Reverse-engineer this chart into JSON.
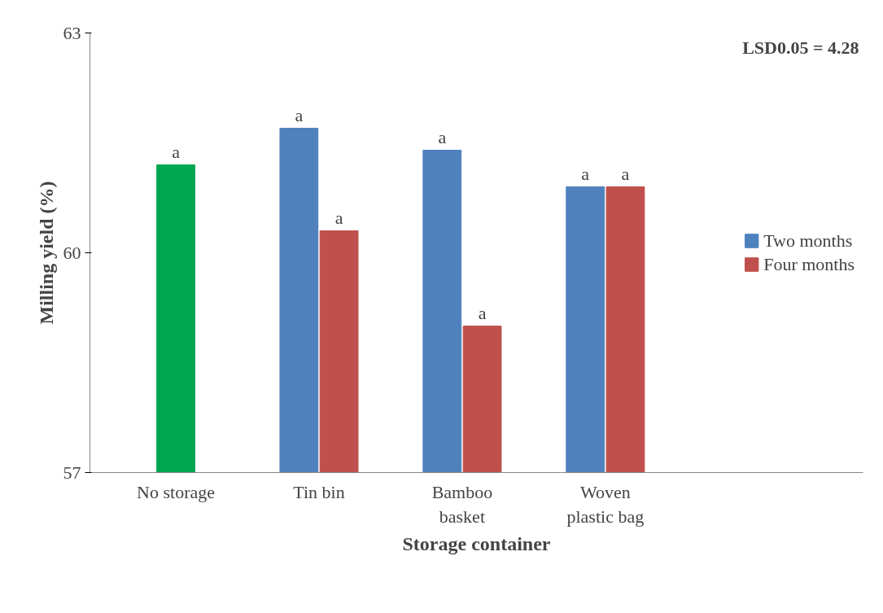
{
  "chart_data": {
    "type": "bar",
    "xlabel": "Storage container",
    "ylabel": "Milling yield (%)",
    "categories": [
      "No storage",
      "Tin bin",
      "Bamboo basket",
      "Woven plastic bag"
    ],
    "series": [
      {
        "color": "#00a650",
        "values": [
          61.2,
          null,
          null,
          null
        ],
        "value_labels": [
          "a",
          null,
          null,
          null
        ]
      },
      {
        "name": "Two months",
        "color": "#4f81bd",
        "values": [
          null,
          61.7,
          61.4,
          60.9
        ],
        "value_labels": [
          null,
          "a",
          "a",
          "a"
        ]
      },
      {
        "name": "Four months",
        "color": "#c0504d",
        "values": [
          null,
          60.3,
          59.0,
          60.9
        ],
        "value_labels": [
          null,
          "a",
          "a",
          "a"
        ]
      }
    ],
    "ylim": [
      57,
      63
    ],
    "yticks": [
      57,
      60,
      63
    ],
    "grid": false,
    "legend": "right",
    "annotations": [
      "LSD0.05 = 4.28"
    ]
  }
}
